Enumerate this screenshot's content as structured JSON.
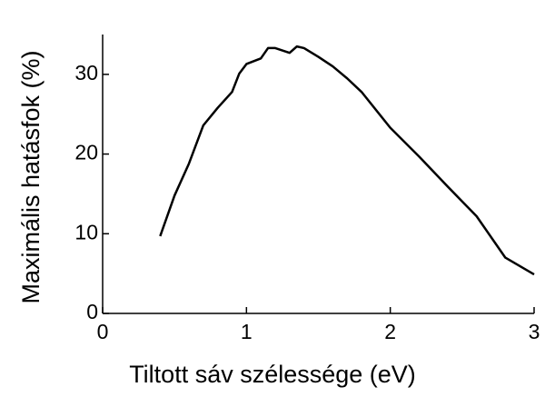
{
  "chart_data": {
    "type": "line",
    "xlabel": "Tiltott sáv szélessége (eV)",
    "ylabel": "Maximális hatásfok (%)",
    "x": [
      0.4,
      0.5,
      0.6,
      0.7,
      0.8,
      0.9,
      0.95,
      1.0,
      1.1,
      1.15,
      1.2,
      1.3,
      1.35,
      1.4,
      1.5,
      1.6,
      1.7,
      1.8,
      2.0,
      2.2,
      2.4,
      2.6,
      2.8,
      3.0
    ],
    "series": [
      {
        "color": "#000000",
        "values": [
          9.7,
          14.8,
          18.8,
          23.6,
          25.8,
          27.8,
          30.1,
          31.3,
          32.0,
          33.3,
          33.3,
          32.7,
          33.5,
          33.3,
          32.2,
          31.0,
          29.5,
          27.8,
          23.3,
          19.7,
          15.9,
          12.2,
          7.0,
          4.9
        ]
      }
    ],
    "xlim": [
      0,
      3
    ],
    "xticks": [
      0,
      1,
      2,
      3
    ],
    "ylim": [
      0,
      35
    ],
    "yticks": [
      0,
      10,
      20,
      30
    ]
  }
}
